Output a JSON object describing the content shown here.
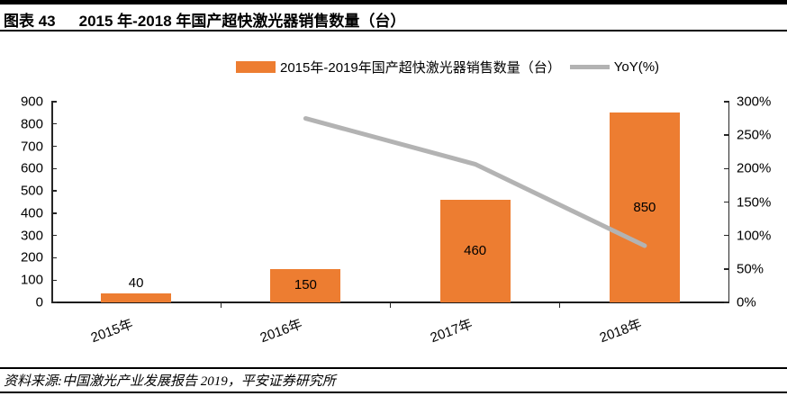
{
  "header": {
    "figure_label": "图表 43",
    "title": "2015 年-2018 年国产超快激光器销售数量（台）"
  },
  "legend": {
    "bar_label": "2015年-2019年国产超快激光器销售数量（台）",
    "line_label": "YoY(%)"
  },
  "footer": {
    "source": "资料来源:中国激光产业发展报告 2019，平安证券研究所"
  },
  "colors": {
    "bar": "#ED7D31",
    "line": "#B3B3B3",
    "axis": "#262626",
    "text": "#000000"
  },
  "chart_data": {
    "type": "bar",
    "title": "2015 年-2018 年国产超快激光器销售数量（台）",
    "categories": [
      "2015年",
      "2016年",
      "2017年",
      "2018年"
    ],
    "series": [
      {
        "name": "2015年-2019年国产超快激光器销售数量（台）",
        "type": "bar",
        "axis": "left",
        "color": "#ED7D31",
        "values": [
          40,
          150,
          460,
          850
        ],
        "data_labels": [
          "40",
          "150",
          "460",
          "850"
        ]
      },
      {
        "name": "YoY(%)",
        "type": "line",
        "axis": "right",
        "color": "#B3B3B3",
        "values": [
          null,
          275,
          206.7,
          84.8
        ]
      }
    ],
    "left_axis": {
      "min": 0,
      "max": 900,
      "step": 100,
      "tick_labels": [
        "0",
        "100",
        "200",
        "300",
        "400",
        "500",
        "600",
        "700",
        "800",
        "900"
      ]
    },
    "right_axis": {
      "min": 0,
      "max": 300,
      "step": 50,
      "tick_labels": [
        "0%",
        "50%",
        "100%",
        "150%",
        "200%",
        "250%",
        "300%"
      ]
    },
    "grid": false,
    "legend_position": "top-center"
  }
}
